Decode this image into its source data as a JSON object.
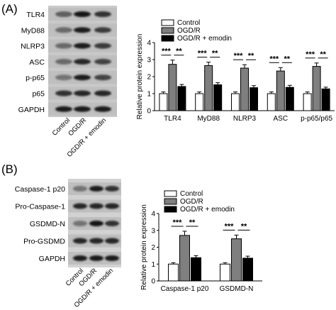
{
  "panels": [
    {
      "letter": "(A)",
      "blot_rows": [
        "TLR4",
        "MyD88",
        "NLRP3",
        "ASC",
        "p-p65",
        "p65",
        "GAPDH"
      ],
      "lanes": [
        "Control",
        "OGD/R",
        "OGD/R + emodin"
      ]
    },
    {
      "letter": "(B)",
      "blot_rows": [
        "Caspase-1 p20",
        "Pro-Caspase-1",
        "GSDMD-N",
        "Pro-GSDMD",
        "GAPDH"
      ],
      "lanes": [
        "Control",
        "OGD/R",
        "OGD/R + emodin"
      ]
    }
  ],
  "chart_data": [
    {
      "type": "bar",
      "panel": "(A)",
      "ylabel": "Relative protein expression",
      "ylim": [
        0,
        4
      ],
      "yticks": [
        0,
        1,
        2,
        3,
        4
      ],
      "legend_position": "top-right",
      "categories": [
        "TLR4",
        "MyD88",
        "NLRP3",
        "ASC",
        "p-p65/p65"
      ],
      "series": [
        {
          "name": "Control",
          "color": "#ffffff",
          "values": [
            1.0,
            1.0,
            1.0,
            1.0,
            1.0
          ],
          "errors": [
            0.1,
            0.1,
            0.1,
            0.1,
            0.1
          ]
        },
        {
          "name": "OGD/R",
          "color": "#7f7f7f",
          "values": [
            2.72,
            2.65,
            2.5,
            2.33,
            2.6
          ],
          "errors": [
            0.25,
            0.2,
            0.2,
            0.2,
            0.2
          ]
        },
        {
          "name": "OGD/R + emodin",
          "color": "#000000",
          "values": [
            1.42,
            1.52,
            1.35,
            1.37,
            1.28
          ],
          "errors": [
            0.12,
            0.12,
            0.12,
            0.12,
            0.1
          ]
        }
      ],
      "significance": [
        {
          "category": "TLR4",
          "pairs": [
            [
              "Control",
              "OGD/R",
              "***"
            ],
            [
              "OGD/R",
              "OGD/R + emodin",
              "**"
            ]
          ]
        },
        {
          "category": "MyD88",
          "pairs": [
            [
              "Control",
              "OGD/R",
              "***"
            ],
            [
              "OGD/R",
              "OGD/R + emodin",
              "**"
            ]
          ]
        },
        {
          "category": "NLRP3",
          "pairs": [
            [
              "Control",
              "OGD/R",
              "***"
            ],
            [
              "OGD/R",
              "OGD/R + emodin",
              "**"
            ]
          ]
        },
        {
          "category": "ASC",
          "pairs": [
            [
              "Control",
              "OGD/R",
              "***"
            ],
            [
              "OGD/R",
              "OGD/R + emodin",
              "**"
            ]
          ]
        },
        {
          "category": "p-p65/p65",
          "pairs": [
            [
              "Control",
              "OGD/R",
              "***"
            ],
            [
              "OGD/R",
              "OGD/R + emodin",
              "**"
            ]
          ]
        }
      ]
    },
    {
      "type": "bar",
      "panel": "(B)",
      "ylabel": "Relative protein expression",
      "ylim": [
        0,
        4
      ],
      "yticks": [
        0,
        1,
        2,
        3,
        4
      ],
      "legend_position": "top-right",
      "categories": [
        "Caspase-1 p20",
        "GSDMD-N"
      ],
      "series": [
        {
          "name": "Control",
          "color": "#ffffff",
          "values": [
            1.0,
            1.0
          ],
          "errors": [
            0.08,
            0.08
          ]
        },
        {
          "name": "OGD/R",
          "color": "#7f7f7f",
          "values": [
            2.7,
            2.5
          ],
          "errors": [
            0.25,
            0.22
          ]
        },
        {
          "name": "OGD/R + emodin",
          "color": "#000000",
          "values": [
            1.38,
            1.35
          ],
          "errors": [
            0.12,
            0.12
          ]
        }
      ],
      "significance": [
        {
          "category": "Caspase-1 p20",
          "pairs": [
            [
              "Control",
              "OGD/R",
              "***"
            ],
            [
              "OGD/R",
              "OGD/R + emodin",
              "**"
            ]
          ]
        },
        {
          "category": "GSDMD-N",
          "pairs": [
            [
              "Control",
              "OGD/R",
              "***"
            ],
            [
              "OGD/R",
              "OGD/R + emodin",
              "**"
            ]
          ]
        }
      ]
    }
  ]
}
